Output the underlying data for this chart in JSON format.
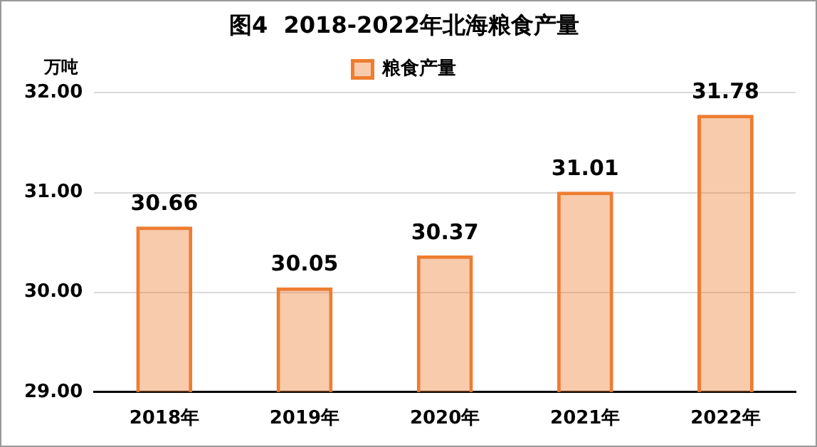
{
  "chart_data": {
    "type": "bar",
    "title": "图4  2018-2022年北海粮食产量",
    "ylabel": "万吨",
    "categories": [
      "2018年",
      "2019年",
      "2020年",
      "2021年",
      "2022年"
    ],
    "series": [
      {
        "name": "粮食产量",
        "color": "#ed7d31",
        "values": [
          30.66,
          30.05,
          30.37,
          31.01,
          31.78
        ]
      }
    ],
    "ylim": [
      29,
      32
    ],
    "yticks": [
      {
        "value": 29,
        "label": "29.00"
      },
      {
        "value": 30,
        "label": "30.00"
      },
      {
        "value": 31,
        "label": "31.00"
      },
      {
        "value": 32,
        "label": "32.00"
      }
    ],
    "grid": "y",
    "legend": "top",
    "data_labels": true
  }
}
